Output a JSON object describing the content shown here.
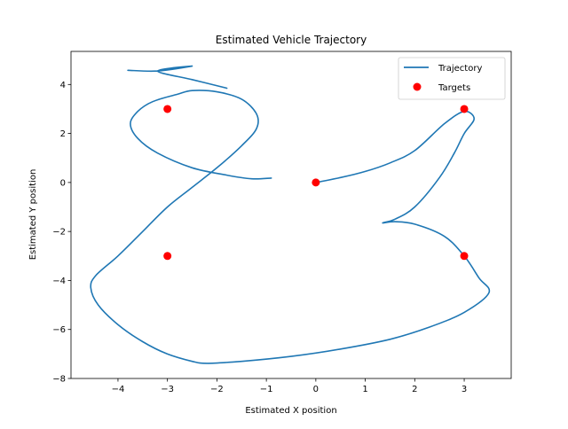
{
  "chart_data": {
    "type": "line",
    "title": "Estimated Vehicle Trajectory",
    "xlabel": "Estimated X position",
    "ylabel": "Estimated Y position",
    "xlim": [
      -4.95,
      3.95
    ],
    "ylim": [
      -8.0,
      5.35
    ],
    "xticks": [
      -4,
      -3,
      -2,
      -1,
      0,
      1,
      2,
      3
    ],
    "yticks": [
      -8,
      -6,
      -4,
      -2,
      0,
      2,
      4
    ],
    "grid": false,
    "legend_position": "top-right",
    "series": [
      {
        "name": "Trajectory",
        "kind": "line",
        "color": "#1f77b4",
        "points": [
          [
            -0.9,
            0.18
          ],
          [
            -1.3,
            0.15
          ],
          [
            -1.8,
            0.3
          ],
          [
            -2.5,
            0.6
          ],
          [
            -3.2,
            1.2
          ],
          [
            -3.6,
            1.8
          ],
          [
            -3.75,
            2.4
          ],
          [
            -3.6,
            2.9
          ],
          [
            -3.3,
            3.3
          ],
          [
            -2.8,
            3.6
          ],
          [
            -2.5,
            3.75
          ],
          [
            -2.0,
            3.7
          ],
          [
            -1.5,
            3.4
          ],
          [
            -1.2,
            2.8
          ],
          [
            -1.2,
            2.2
          ],
          [
            -1.5,
            1.5
          ],
          [
            -2.0,
            0.6
          ],
          [
            -2.5,
            -0.2
          ],
          [
            -3.0,
            -1.0
          ],
          [
            -3.5,
            -2.0
          ],
          [
            -4.0,
            -3.0
          ],
          [
            -4.45,
            -3.8
          ],
          [
            -4.55,
            -4.3
          ],
          [
            -4.4,
            -5.0
          ],
          [
            -4.0,
            -5.8
          ],
          [
            -3.5,
            -6.5
          ],
          [
            -3.0,
            -7.0
          ],
          [
            -2.5,
            -7.3
          ],
          [
            -2.2,
            -7.38
          ],
          [
            -1.5,
            -7.3
          ],
          [
            -0.5,
            -7.1
          ],
          [
            0.5,
            -6.8
          ],
          [
            1.5,
            -6.4
          ],
          [
            2.3,
            -5.9
          ],
          [
            3.0,
            -5.3
          ],
          [
            3.5,
            -4.5
          ],
          [
            3.3,
            -3.9
          ],
          [
            3.0,
            -3.0
          ],
          [
            2.6,
            -2.2
          ],
          [
            2.0,
            -1.7
          ],
          [
            1.6,
            -1.6
          ],
          [
            1.35,
            -1.65
          ],
          [
            1.6,
            -1.5
          ],
          [
            2.0,
            -1.0
          ],
          [
            2.5,
            0.2
          ],
          [
            2.8,
            1.2
          ],
          [
            3.0,
            2.0
          ],
          [
            3.2,
            2.6
          ],
          [
            3.0,
            2.9
          ],
          [
            2.6,
            2.4
          ],
          [
            2.0,
            1.3
          ],
          [
            1.5,
            0.8
          ],
          [
            1.0,
            0.45
          ],
          [
            0.5,
            0.2
          ],
          [
            0.0,
            0.0
          ]
        ],
        "start_tail": [
          [
            -0.9,
            0.18
          ],
          [
            -1.3,
            0.15
          ],
          [
            -2.0,
            0.45
          ],
          [
            -2.7,
            0.9
          ],
          [
            -3.0,
            1.2
          ],
          [
            -3.6,
            1.8
          ]
        ],
        "top_loop": [
          [
            -3.8,
            4.58
          ],
          [
            -3.2,
            4.55
          ],
          [
            -2.5,
            4.75
          ],
          [
            -3.2,
            4.55
          ],
          [
            -2.5,
            4.2
          ],
          [
            -1.8,
            3.85
          ]
        ]
      },
      {
        "name": "Targets",
        "kind": "scatter",
        "color": "#ff0000",
        "points": [
          [
            -3,
            3
          ],
          [
            3,
            3
          ],
          [
            0,
            0
          ],
          [
            -3,
            -3
          ],
          [
            3,
            -3
          ]
        ]
      }
    ]
  }
}
